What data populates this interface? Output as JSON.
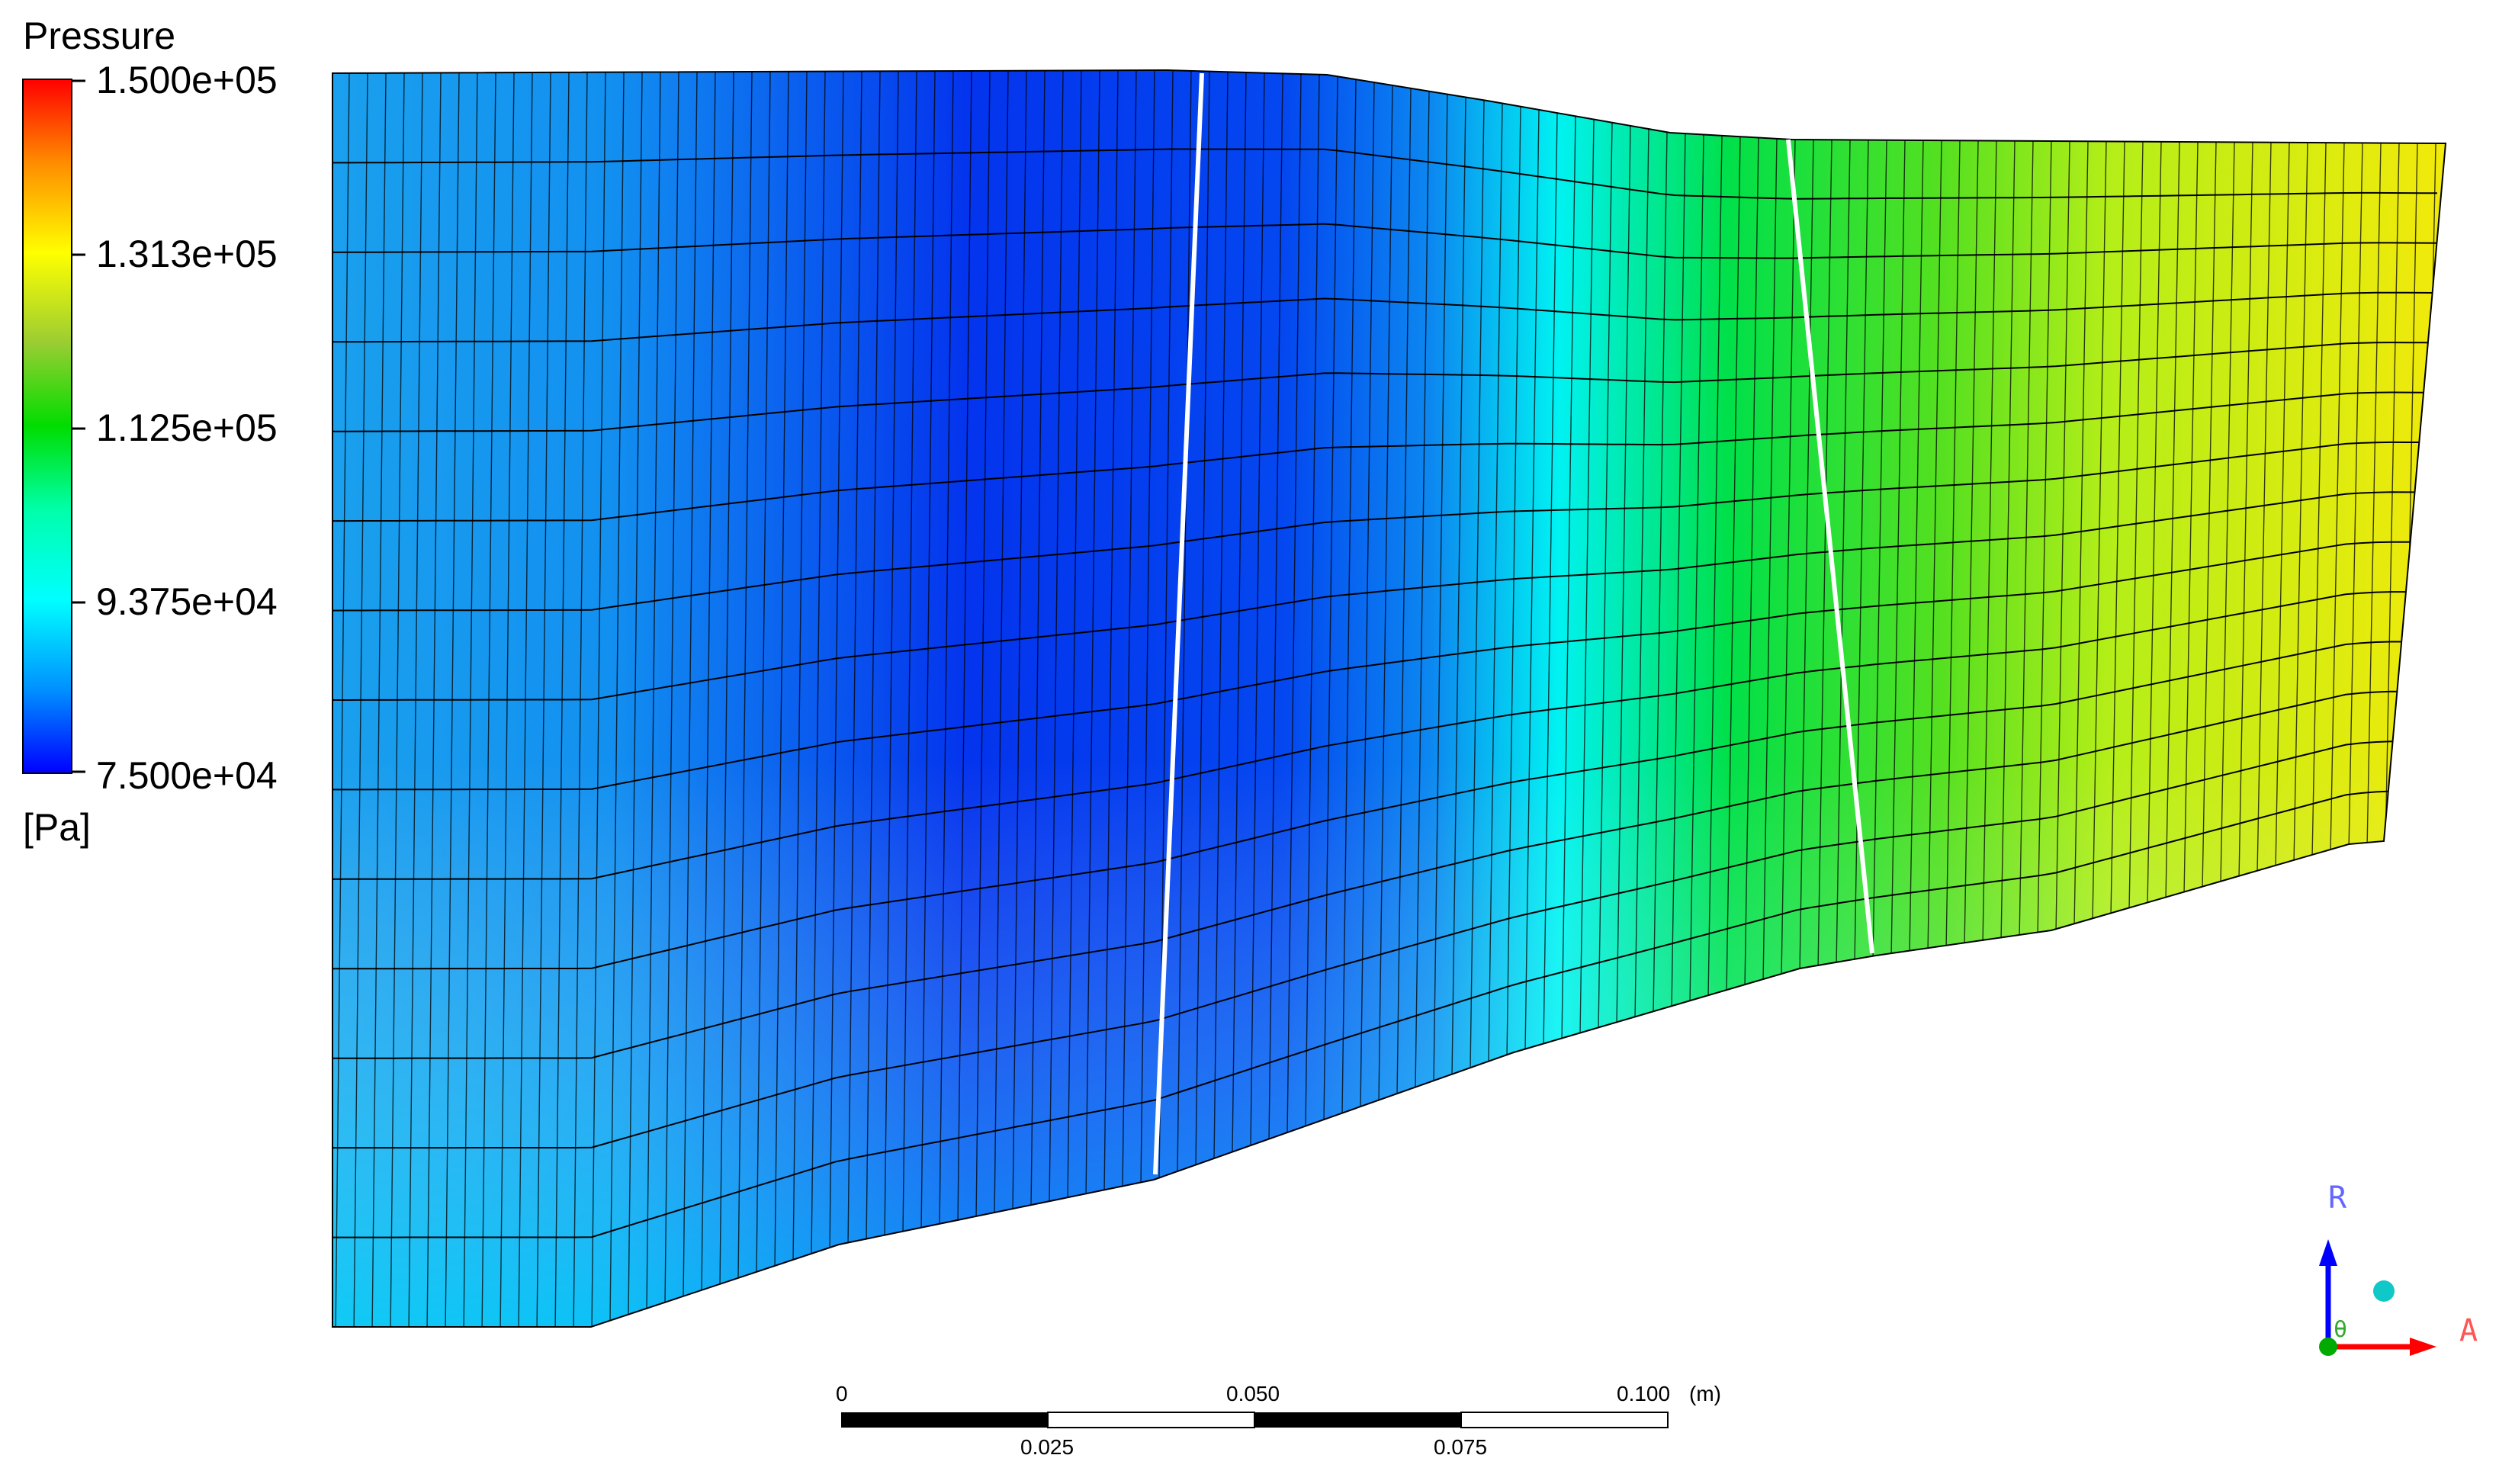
{
  "legend": {
    "title": "Pressure",
    "unit": "[Pa]",
    "ticks": [
      "1.500e+05",
      "1.313e+05",
      "1.125e+05",
      "9.375e+04",
      "7.500e+04"
    ],
    "colors": [
      "#ff0000",
      "#ffa500",
      "#ffff00",
      "#9acd32",
      "#00dd00",
      "#00ffaa",
      "#00ffff",
      "#0090ff",
      "#0000ff"
    ]
  },
  "scale_bar": {
    "top_labels": [
      "0",
      "0.050",
      "0.100"
    ],
    "bottom_labels": [
      "0.025",
      "0.075"
    ],
    "unit": "(m)"
  },
  "axes": {
    "radial_label": "R",
    "axial_label": "A",
    "theta_label": "θ",
    "colors": {
      "radial": "#0000ff",
      "axial": "#ff0000",
      "theta": "#00aa00",
      "marker": "#00cccc"
    }
  },
  "contour": {
    "pressure_stations": [
      {
        "station": 0.0,
        "value": 85000
      },
      {
        "station": 0.13,
        "value": 84000
      },
      {
        "station": 0.3,
        "value": 77000
      },
      {
        "station": 0.45,
        "value": 78000
      },
      {
        "station": 0.52,
        "value": 83000
      },
      {
        "station": 0.58,
        "value": 98000
      },
      {
        "station": 0.66,
        "value": 112000
      },
      {
        "station": 0.76,
        "value": 118000
      },
      {
        "station": 0.84,
        "value": 124000
      },
      {
        "station": 1.0,
        "value": 132000
      }
    ]
  }
}
